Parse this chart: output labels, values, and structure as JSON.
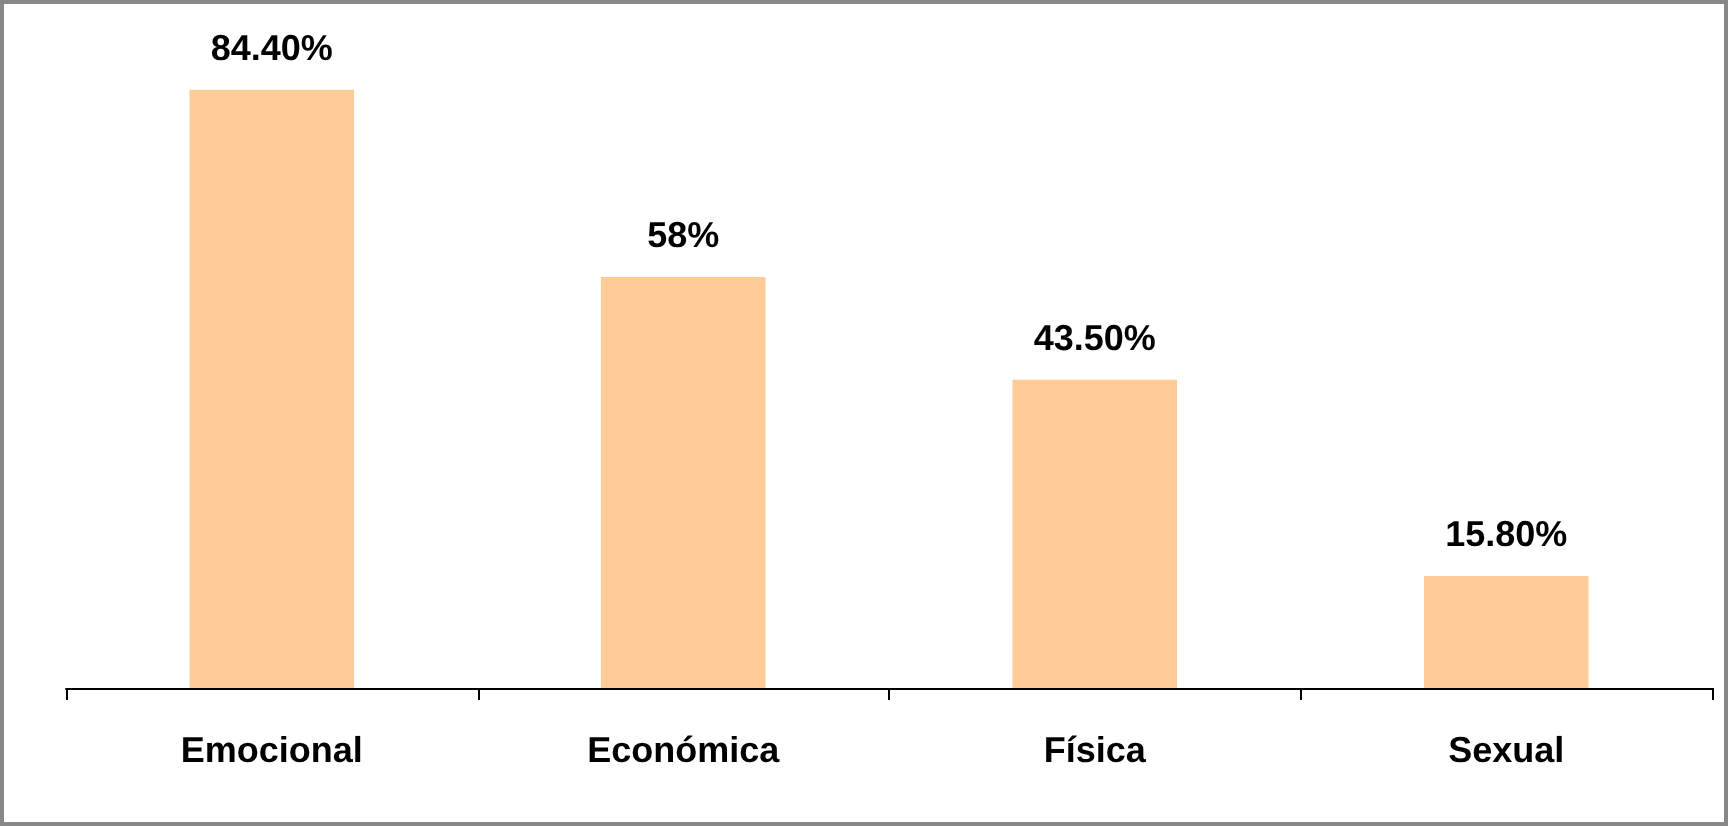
{
  "chart_data": {
    "type": "bar",
    "categories": [
      "Emocional",
      "Económica",
      "Física",
      "Sexual"
    ],
    "values": [
      84.4,
      58,
      43.5,
      15.8
    ],
    "value_labels": [
      "84.40%",
      "58%",
      "43.50%",
      "15.80%"
    ],
    "color": "#ffcc99"
  }
}
